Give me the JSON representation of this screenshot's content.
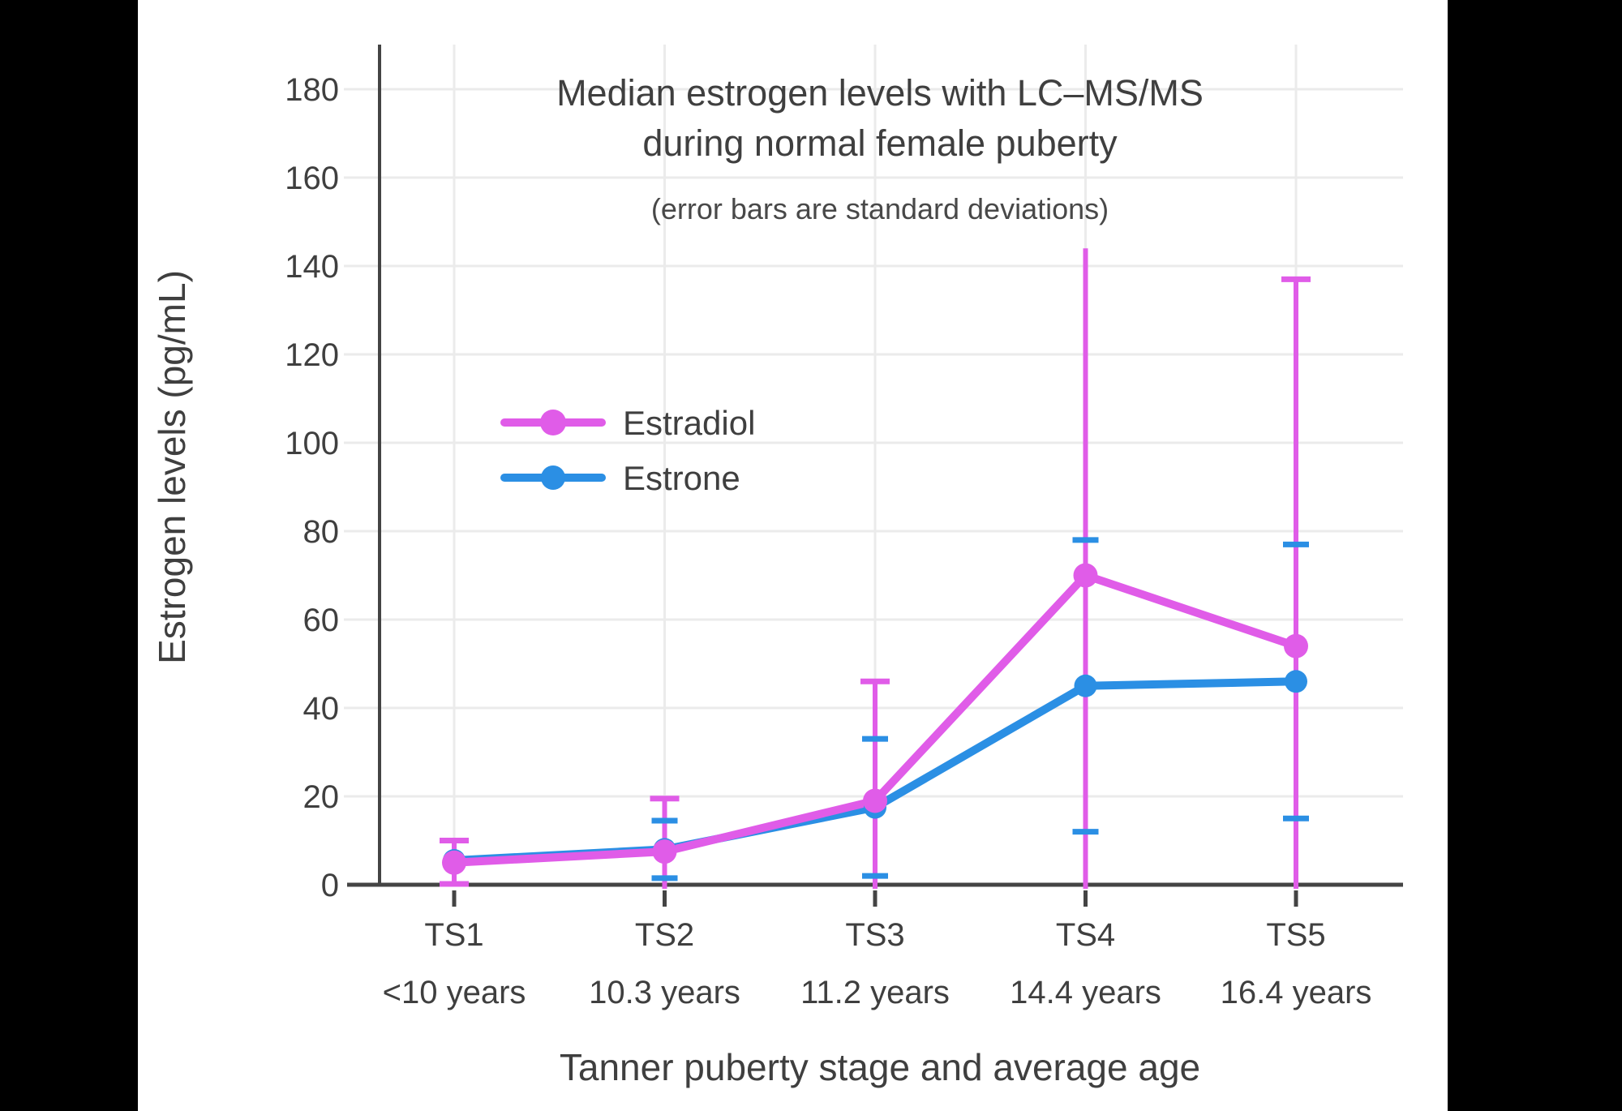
{
  "chart_data": {
    "type": "line",
    "title_line1": "Median estrogen levels with LC–MS/MS",
    "title_line2": "during normal female puberty",
    "subtitle": "(error bars are standard deviations)",
    "xlabel": "Tanner puberty stage and average age",
    "ylabel": "Estrogen levels (pg/mL)",
    "categories": [
      "TS1",
      "TS2",
      "TS3",
      "TS4",
      "TS5"
    ],
    "category_ages": [
      "<10 years",
      "10.3 years",
      "11.2 years",
      "14.4 years",
      "16.4 years"
    ],
    "ylim": [
      0,
      190
    ],
    "yticks": [
      0,
      20,
      40,
      60,
      80,
      100,
      120,
      140,
      160,
      180
    ],
    "grid": true,
    "legend_position": "inside-upper-left",
    "error_bar_meaning": "standard deviations",
    "series": [
      {
        "name": "Estradiol",
        "color": "#e05ce8",
        "values": [
          5,
          7.5,
          19,
          70,
          54
        ],
        "sd": [
          5,
          12,
          27,
          74,
          83
        ],
        "cap_top": [
          true,
          true,
          true,
          false,
          true
        ],
        "error_style": "line-and-caps"
      },
      {
        "name": "Estrone",
        "color": "#2b8fe4",
        "values": [
          5.5,
          8,
          17.5,
          45,
          46
        ],
        "sd": [
          null,
          6.5,
          15.5,
          33,
          31
        ],
        "error_style": "caps-only"
      }
    ]
  },
  "colors": {
    "canvas_background": "#ffffff",
    "letterbox": "#000000",
    "axis": "#444444",
    "grid": "#ebebeb",
    "text": "#3f3f3f",
    "subtitle_text": "#484848"
  }
}
